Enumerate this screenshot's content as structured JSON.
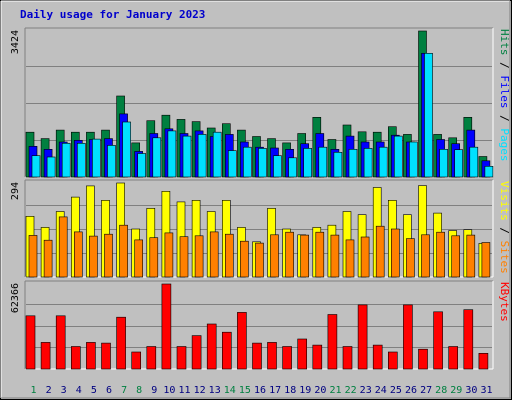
{
  "chart_data": {
    "type": "bar",
    "title": "Daily usage for January 2023",
    "days": [
      "1",
      "2",
      "3",
      "4",
      "5",
      "6",
      "7",
      "8",
      "9",
      "10",
      "11",
      "12",
      "13",
      "14",
      "15",
      "16",
      "17",
      "18",
      "19",
      "20",
      "21",
      "22",
      "23",
      "24",
      "25",
      "26",
      "27",
      "28",
      "29",
      "30",
      "31"
    ],
    "weekend_days": [
      "1",
      "7",
      "8",
      "14",
      "15",
      "21",
      "22",
      "28",
      "29"
    ],
    "colors": {
      "hits": "#008040",
      "files": "#0000ff",
      "pages": "#00e0ff",
      "visits": "#ffff00",
      "sites": "#ff8000",
      "kbytes": "#ff0000",
      "title": "#0000cc",
      "weekday": "#000080",
      "weekend": "#008040"
    },
    "panels": [
      {
        "id": "hits_files_pages",
        "max_label": "3424",
        "ymax": 3424,
        "side_labels": [
          {
            "text": "Pages",
            "color": "#00e0ff"
          },
          {
            "text": " / ",
            "color": "#000000"
          },
          {
            "text": "Files",
            "color": "#0000ff"
          },
          {
            "text": " / ",
            "color": "#000000"
          },
          {
            "text": "Hits",
            "color": "#008040"
          }
        ],
        "series": [
          {
            "name": "Hits",
            "color": "#008040",
            "values": [
              1050,
              900,
              1100,
              1050,
              1050,
              1100,
              1900,
              800,
              1320,
              1450,
              1350,
              1300,
              1150,
              1250,
              1100,
              950,
              900,
              800,
              1020,
              1400,
              880,
              1220,
              1060,
              1050,
              1180,
              1000,
              3424,
              1000,
              920,
              1400,
              480
            ]
          },
          {
            "name": "Files",
            "color": "#0000ff",
            "values": [
              720,
              650,
              820,
              860,
              880,
              900,
              1480,
              600,
              1020,
              1130,
              1020,
              1080,
              950,
              1000,
              820,
              700,
              680,
              650,
              780,
              1020,
              650,
              960,
              820,
              820,
              980,
              820,
              2900,
              880,
              780,
              1100,
              380
            ]
          },
          {
            "name": "Pages",
            "color": "#00e0ff",
            "values": [
              500,
              470,
              790,
              790,
              890,
              740,
              1290,
              550,
              920,
              1080,
              960,
              1000,
              1050,
              620,
              700,
              670,
              500,
              450,
              670,
              700,
              580,
              650,
              670,
              700,
              960,
              820,
              2900,
              650,
              640,
              700,
              250
            ]
          }
        ]
      },
      {
        "id": "visits_sites",
        "max_label": "294",
        "ymax": 294,
        "side_labels": [
          {
            "text": "Sites",
            "color": "#ff8000"
          },
          {
            "text": " / ",
            "color": "#000000"
          },
          {
            "text": "Visits",
            "color": "#ffff00"
          }
        ],
        "series": [
          {
            "name": "Visits",
            "color": "#ffff00",
            "values": [
              190,
              155,
              205,
              250,
              285,
              240,
              294,
              150,
              215,
              268,
              235,
              240,
              205,
              240,
              155,
              110,
              215,
              150,
              132,
              155,
              162,
              205,
              195,
              280,
              240,
              195,
              286,
              200,
              145,
              148,
              105
            ]
          },
          {
            "name": "Sites",
            "color": "#ff8000",
            "values": [
              130,
              115,
              188,
              141,
              128,
              134,
              162,
              116,
              123,
              138,
              126,
              129,
              141,
              134,
              112,
              106,
              132,
              140,
              131,
              140,
              131,
              116,
              125,
              159,
              150,
              120,
              132,
              140,
              129,
              131,
              108
            ]
          }
        ]
      },
      {
        "id": "kbytes",
        "max_label": "62366",
        "ymax": 62366,
        "side_labels": [
          {
            "text": "KBytes",
            "color": "#ff0000"
          }
        ],
        "series": [
          {
            "name": "KBytes",
            "color": "#ff0000",
            "values": [
              39000,
              19500,
              39000,
              16500,
              19500,
              19000,
              38000,
              12500,
              16500,
              62366,
              16500,
              24500,
              33000,
              27000,
              41500,
              19000,
              19500,
              16500,
              22000,
              17500,
              40000,
              16500,
              47000,
              17500,
              12500,
              47000,
              14500,
              42000,
              16500,
              43500,
              11500
            ]
          }
        ]
      }
    ]
  }
}
